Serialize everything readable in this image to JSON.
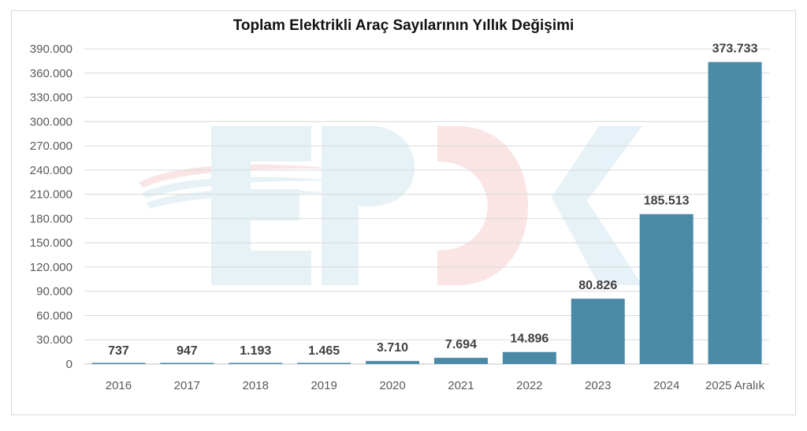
{
  "chart_data": {
    "type": "bar",
    "title": "Toplam Elektrikli Araç Sayılarının Yıllık Değişimi",
    "categories": [
      "2016",
      "2017",
      "2018",
      "2019",
      "2020",
      "2021",
      "2022",
      "2023",
      "2024",
      "2025 Aralık"
    ],
    "values": [
      737,
      947,
      1193,
      1465,
      3710,
      7694,
      14896,
      80826,
      185513,
      373733
    ],
    "data_labels": [
      "737",
      "947",
      "1.193",
      "1.465",
      "3.710",
      "7.694",
      "14.896",
      "80.826",
      "185.513",
      "373.733"
    ],
    "yticks": [
      0,
      30000,
      60000,
      90000,
      120000,
      150000,
      180000,
      210000,
      240000,
      270000,
      300000,
      330000,
      360000,
      390000
    ],
    "ytick_labels": [
      "0",
      "30.000",
      "60.000",
      "90.000",
      "120.000",
      "150.000",
      "180.000",
      "210.000",
      "240.000",
      "270.000",
      "300.000",
      "330.000",
      "360.000",
      "390.000"
    ],
    "ylim": [
      0,
      390000
    ],
    "xlabel": "",
    "ylabel": "",
    "grid": true,
    "legend": "none",
    "bar_color": "#4a8aa6",
    "watermark": "EPDK"
  }
}
